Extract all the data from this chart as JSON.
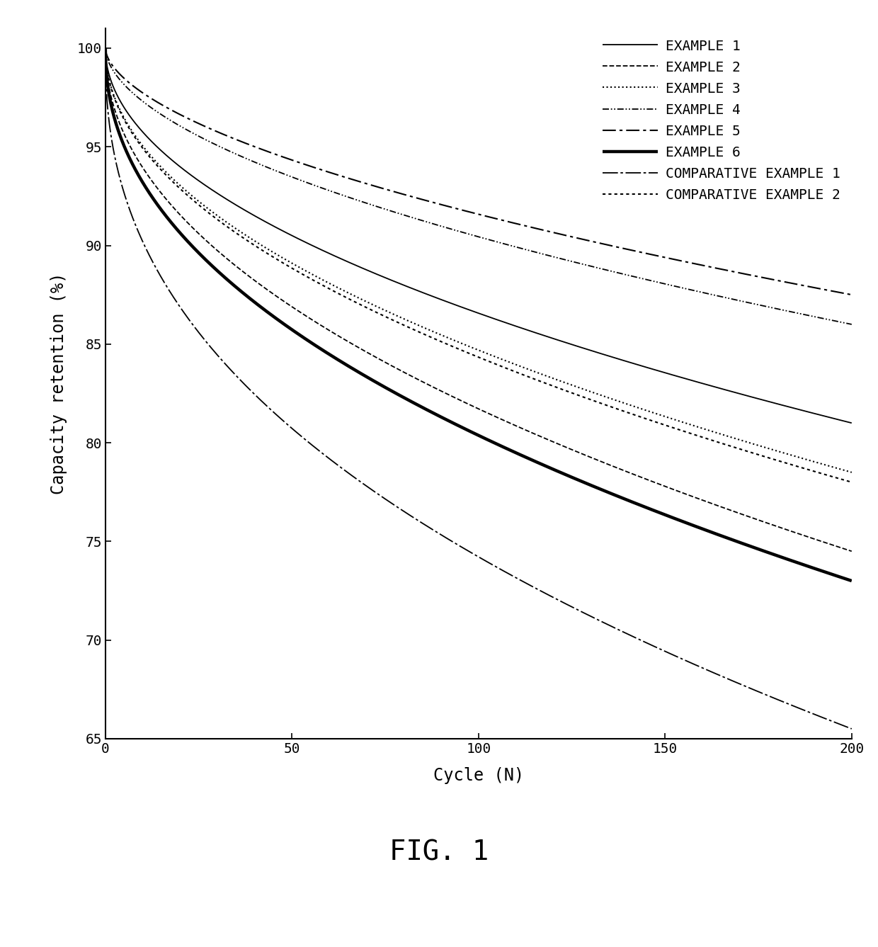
{
  "title": "FIG. 1",
  "xlabel": "Cycle (N)",
  "ylabel": "Capacity retention (%)",
  "xlim": [
    0,
    200
  ],
  "ylim": [
    65,
    101
  ],
  "yticks": [
    65,
    70,
    75,
    80,
    85,
    90,
    95,
    100
  ],
  "xticks": [
    0,
    50,
    100,
    150,
    200
  ],
  "background_color": "#ffffff",
  "series": [
    {
      "label": "EXAMPLE 1",
      "linestyle": "solid",
      "linewidth": 1.3,
      "end_value": 81.0,
      "k1": 30,
      "k2": 0.18,
      "at20": 94.0
    },
    {
      "label": "EXAMPLE 2",
      "linestyle": "dashed",
      "linewidth": 1.3,
      "end_value": 74.5,
      "k1": 30,
      "k2": 0.26,
      "at20": 93.5
    },
    {
      "label": "EXAMPLE 3",
      "linestyle": "dotted",
      "linewidth": 1.6,
      "end_value": 78.5,
      "k1": 30,
      "k2": 0.22,
      "at20": 93.5
    },
    {
      "label": "EXAMPLE 4",
      "linestyle": "dashdotdot",
      "linewidth": 1.3,
      "end_value": 86.0,
      "k1": 25,
      "k2": 0.12,
      "at20": 95.0
    },
    {
      "label": "EXAMPLE 5",
      "linestyle": "dashdot",
      "linewidth": 1.5,
      "end_value": 87.5,
      "k1": 20,
      "k2": 0.1,
      "at20": 95.5
    },
    {
      "label": "EXAMPLE 6",
      "linestyle": "solid",
      "linewidth": 3.2,
      "end_value": 73.0,
      "k1": 35,
      "k2": 0.3,
      "at20": 93.0
    },
    {
      "label": "COMPARATIVE EXAMPLE 1",
      "linestyle": "longdashdot",
      "linewidth": 1.3,
      "end_value": 65.5,
      "k1": 50,
      "k2": 0.38,
      "at20": 91.0
    },
    {
      "label": "COMPARATIVE EXAMPLE 2",
      "linestyle": "densedot",
      "linewidth": 1.6,
      "end_value": 78.0,
      "k1": 30,
      "k2": 0.22,
      "at20": 93.0
    }
  ]
}
